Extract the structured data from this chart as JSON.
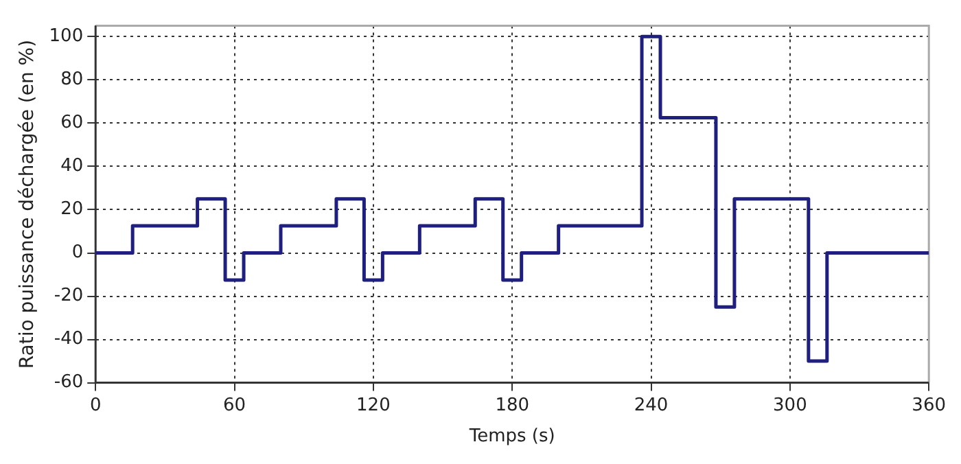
{
  "chart_data": {
    "type": "step",
    "xlabel": "Temps (s)",
    "ylabel": "Ratio puissance déchargée (en %)",
    "x": [
      0,
      16,
      44,
      56,
      64,
      80,
      104,
      116,
      124,
      140,
      164,
      176,
      184,
      200,
      236,
      244,
      268,
      276,
      308,
      316,
      360
    ],
    "series": [
      {
        "color": "#1f1f7f",
        "values": [
          0,
          12.5,
          25,
          -12.5,
          0,
          12.5,
          25,
          -12.5,
          0,
          12.5,
          25,
          -12.5,
          0,
          12.5,
          100,
          62.5,
          -25,
          25,
          -50,
          0,
          0
        ]
      }
    ],
    "xlim": [
      0,
      360
    ],
    "xticks": [
      0,
      60,
      120,
      180,
      240,
      300,
      360
    ],
    "ylim": [
      -60,
      105
    ],
    "yticks": [
      -60,
      -40,
      -20,
      0,
      20,
      40,
      60,
      80,
      100
    ],
    "grid": true,
    "legend": false,
    "line_style": "solid",
    "marker": "none"
  }
}
